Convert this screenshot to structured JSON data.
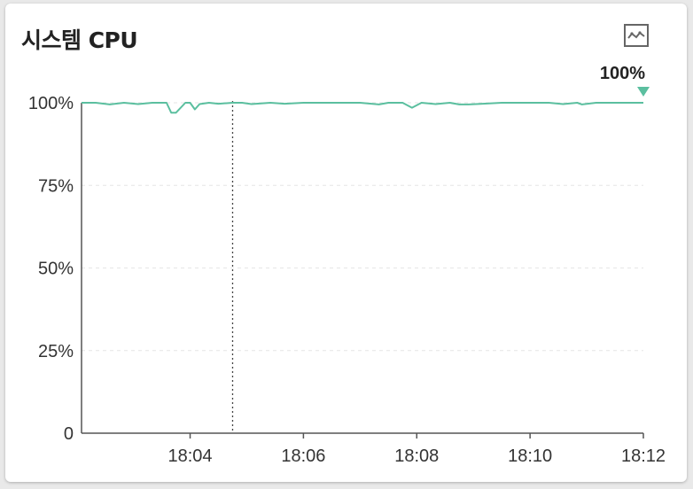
{
  "title": "시스템 CPU",
  "icons": {
    "chart_toggle": "line-chart-icon"
  },
  "colors": {
    "series": "#5bbf9f",
    "grid": "#e6e6e6",
    "axis": "#555555",
    "cursor": "#444444"
  },
  "chart_data": {
    "type": "line",
    "title": "",
    "xlabel": "",
    "ylabel": "",
    "ylim": [
      0,
      100
    ],
    "xlim": [
      "18:02:05",
      "18:12:00"
    ],
    "yticks": [
      0,
      25,
      50,
      75,
      100
    ],
    "ytick_labels": [
      "0",
      "25%",
      "50%",
      "75%",
      "100%"
    ],
    "xticks": [
      "18:04",
      "18:06",
      "18:08",
      "18:10",
      "18:12"
    ],
    "grid": true,
    "current_value_label": "100%",
    "cursor_time": "18:04:45",
    "series": [
      {
        "name": "",
        "x": [
          "18:02:05",
          "18:02:20",
          "18:02:35",
          "18:02:50",
          "18:03:05",
          "18:03:20",
          "18:03:35",
          "18:03:40",
          "18:03:45",
          "18:03:55",
          "18:04:00",
          "18:04:05",
          "18:04:10",
          "18:04:20",
          "18:04:30",
          "18:04:45",
          "18:04:55",
          "18:05:05",
          "18:05:25",
          "18:05:40",
          "18:06:00",
          "18:06:30",
          "18:07:00",
          "18:07:20",
          "18:07:30",
          "18:07:45",
          "18:07:55",
          "18:08:05",
          "18:08:20",
          "18:08:35",
          "18:08:45",
          "18:08:55",
          "18:09:10",
          "18:09:30",
          "18:10:00",
          "18:10:20",
          "18:10:35",
          "18:10:50",
          "18:10:55",
          "18:11:10",
          "18:11:30",
          "18:12:00"
        ],
        "y": [
          100,
          100,
          99.5,
          100,
          99.6,
          100,
          100,
          97,
          97,
          100,
          100,
          98,
          99.6,
          100,
          99.7,
          100,
          100,
          99.6,
          100,
          99.7,
          100,
          100,
          100,
          99.5,
          100,
          100,
          98.5,
          100,
          99.6,
          100,
          99.5,
          99.5,
          99.7,
          100,
          100,
          100,
          99.6,
          100,
          99.5,
          100,
          100,
          100
        ]
      }
    ]
  }
}
